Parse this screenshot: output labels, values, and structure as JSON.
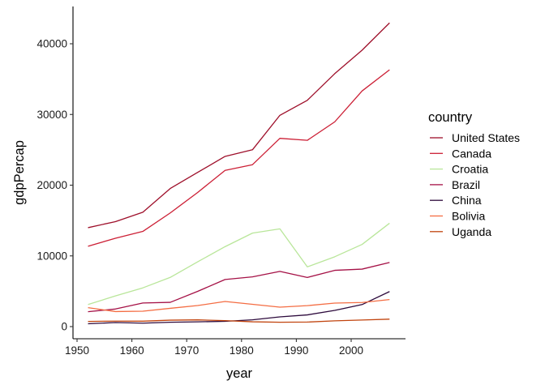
{
  "chart_data": {
    "type": "line",
    "xlabel": "year",
    "ylabel": "gdpPercap",
    "xlim": [
      1952,
      2007
    ],
    "ylim": [
      0,
      43000
    ],
    "x_ticks": [
      1950,
      1960,
      1970,
      1980,
      1990,
      2000
    ],
    "y_ticks": [
      0,
      10000,
      20000,
      30000,
      40000
    ],
    "grid": false,
    "legend": {
      "title": "country",
      "placement": "right"
    },
    "x": [
      1952,
      1957,
      1962,
      1967,
      1972,
      1977,
      1982,
      1987,
      1992,
      1997,
      2002,
      2007
    ],
    "series": [
      {
        "name": "United States",
        "color": "#9e0f2a",
        "values": [
          13990,
          14847,
          16173,
          19530,
          21806,
          24073,
          25010,
          29884,
          32004,
          35767,
          39097,
          42952
        ]
      },
      {
        "name": "Canada",
        "color": "#cc1f35",
        "values": [
          11367,
          12490,
          13462,
          16077,
          18971,
          22091,
          22899,
          26627,
          26343,
          28955,
          33329,
          36319
        ]
      },
      {
        "name": "Croatia",
        "color": "#b9e69a",
        "values": [
          3119,
          4338,
          5478,
          6960,
          9164,
          11305,
          13222,
          13823,
          8448,
          9876,
          11628,
          14619
        ]
      },
      {
        "name": "Brazil",
        "color": "#a51146",
        "values": [
          2109,
          2487,
          3337,
          3430,
          4986,
          6660,
          7031,
          7807,
          6950,
          7958,
          8131,
          9066
        ]
      },
      {
        "name": "China",
        "color": "#2d0a3c",
        "values": [
          400,
          575,
          488,
          613,
          677,
          741,
          962,
          1379,
          1656,
          2289,
          3119,
          4959
        ]
      },
      {
        "name": "Bolivia",
        "color": "#f46d43",
        "values": [
          2677,
          2128,
          2181,
          2587,
          2980,
          3548,
          3157,
          2753,
          2962,
          3326,
          3413,
          3822
        ]
      },
      {
        "name": "Uganda",
        "color": "#c1440e",
        "values": [
          735,
          774,
          768,
          908,
          950,
          844,
          683,
          618,
          644,
          816,
          927,
          1056
        ]
      }
    ]
  }
}
